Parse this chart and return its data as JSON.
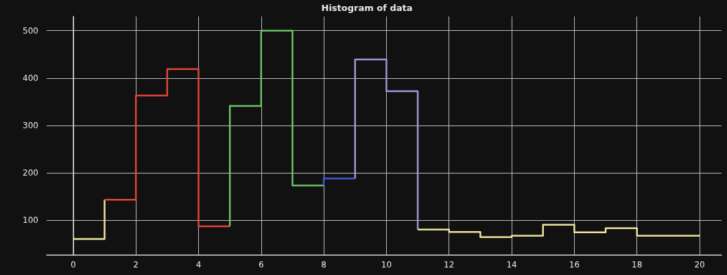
{
  "chart_data": {
    "type": "step",
    "title": "Histogram of data",
    "series": [
      {
        "color": "#ece59a",
        "x": [
          0,
          1,
          1
        ],
        "values": [
          60,
          60,
          143
        ]
      },
      {
        "color": "#e0453a",
        "x": [
          1,
          2,
          3,
          4,
          5
        ],
        "values": [
          143,
          363,
          419,
          87,
          87
        ]
      },
      {
        "color": "#6cc26a",
        "x": [
          5,
          5,
          6,
          7,
          8
        ],
        "values": [
          87,
          341,
          500,
          173,
          173
        ]
      },
      {
        "color": "#3f5ad6",
        "x": [
          8,
          8,
          9
        ],
        "values": [
          173,
          188,
          188
        ]
      },
      {
        "color": "#9c9ad8",
        "x": [
          9,
          9,
          10,
          11,
          11
        ],
        "values": [
          188,
          439,
          372,
          372,
          80
        ]
      },
      {
        "color": "#ece59a",
        "x": [
          11,
          12,
          13,
          14,
          15,
          16,
          17,
          18,
          19,
          20
        ],
        "values": [
          80,
          75,
          64,
          67,
          90,
          74,
          83,
          67,
          67,
          67
        ]
      }
    ],
    "xlim": [
      -0.85,
      20.7
    ],
    "ylim": [
      26,
      530
    ],
    "xticks": [
      0,
      2,
      4,
      6,
      8,
      10,
      12,
      14,
      16,
      18,
      20
    ],
    "yticks": [
      100,
      200,
      300,
      400,
      500
    ],
    "grid": true
  }
}
